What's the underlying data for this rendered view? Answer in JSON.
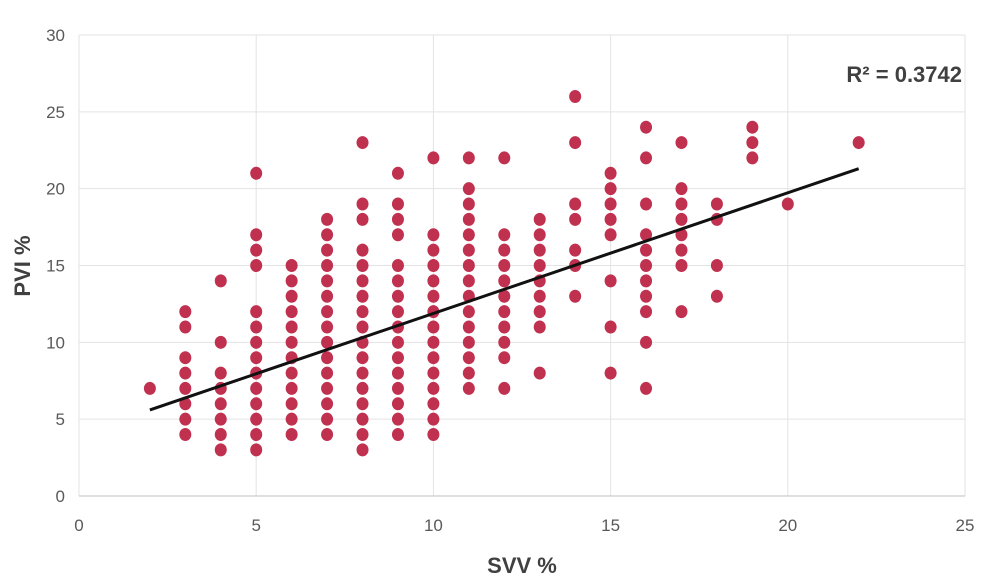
{
  "chart_data": {
    "type": "scatter",
    "title": "",
    "xlabel": "SVV %",
    "ylabel": "PVI %",
    "xlim": [
      0,
      25
    ],
    "ylim": [
      0,
      30
    ],
    "x_ticks": [
      "0",
      "5",
      "10",
      "15",
      "20",
      "25"
    ],
    "y_ticks": [
      "0",
      "5",
      "10",
      "15",
      "20",
      "25",
      "30"
    ],
    "x_tick_values": [
      0,
      5,
      10,
      15,
      20,
      25
    ],
    "y_tick_values": [
      0,
      5,
      10,
      15,
      20,
      25,
      30
    ],
    "grid": "vertical and horizontal",
    "annotation": "R² = 0.3742",
    "colors": {
      "points": "#c0304f",
      "trendline": "#111111"
    },
    "series": [
      {
        "points": [
          [
            2,
            7
          ],
          [
            3,
            4
          ],
          [
            3,
            5
          ],
          [
            3,
            6
          ],
          [
            3,
            7
          ],
          [
            3,
            8
          ],
          [
            3,
            9
          ],
          [
            3,
            11
          ],
          [
            3,
            12
          ],
          [
            4,
            3
          ],
          [
            4,
            4
          ],
          [
            4,
            5
          ],
          [
            4,
            6
          ],
          [
            4,
            7
          ],
          [
            4,
            8
          ],
          [
            4,
            10
          ],
          [
            4,
            14
          ],
          [
            5,
            3
          ],
          [
            5,
            4
          ],
          [
            5,
            5
          ],
          [
            5,
            6
          ],
          [
            5,
            7
          ],
          [
            5,
            8
          ],
          [
            5,
            9
          ],
          [
            5,
            10
          ],
          [
            5,
            11
          ],
          [
            5,
            12
          ],
          [
            5,
            15
          ],
          [
            5,
            16
          ],
          [
            5,
            17
          ],
          [
            5,
            21
          ],
          [
            6,
            4
          ],
          [
            6,
            5
          ],
          [
            6,
            6
          ],
          [
            6,
            7
          ],
          [
            6,
            8
          ],
          [
            6,
            9
          ],
          [
            6,
            10
          ],
          [
            6,
            11
          ],
          [
            6,
            12
          ],
          [
            6,
            13
          ],
          [
            6,
            14
          ],
          [
            6,
            15
          ],
          [
            7,
            4
          ],
          [
            7,
            5
          ],
          [
            7,
            6
          ],
          [
            7,
            7
          ],
          [
            7,
            8
          ],
          [
            7,
            9
          ],
          [
            7,
            10
          ],
          [
            7,
            11
          ],
          [
            7,
            12
          ],
          [
            7,
            13
          ],
          [
            7,
            14
          ],
          [
            7,
            15
          ],
          [
            7,
            16
          ],
          [
            7,
            17
          ],
          [
            7,
            18
          ],
          [
            8,
            3
          ],
          [
            8,
            4
          ],
          [
            8,
            5
          ],
          [
            8,
            6
          ],
          [
            8,
            7
          ],
          [
            8,
            8
          ],
          [
            8,
            9
          ],
          [
            8,
            10
          ],
          [
            8,
            11
          ],
          [
            8,
            12
          ],
          [
            8,
            13
          ],
          [
            8,
            14
          ],
          [
            8,
            15
          ],
          [
            8,
            16
          ],
          [
            8,
            18
          ],
          [
            8,
            19
          ],
          [
            8,
            23
          ],
          [
            9,
            4
          ],
          [
            9,
            5
          ],
          [
            9,
            6
          ],
          [
            9,
            7
          ],
          [
            9,
            8
          ],
          [
            9,
            9
          ],
          [
            9,
            10
          ],
          [
            9,
            11
          ],
          [
            9,
            12
          ],
          [
            9,
            13
          ],
          [
            9,
            14
          ],
          [
            9,
            15
          ],
          [
            9,
            17
          ],
          [
            9,
            18
          ],
          [
            9,
            19
          ],
          [
            9,
            21
          ],
          [
            10,
            4
          ],
          [
            10,
            5
          ],
          [
            10,
            6
          ],
          [
            10,
            7
          ],
          [
            10,
            8
          ],
          [
            10,
            9
          ],
          [
            10,
            10
          ],
          [
            10,
            11
          ],
          [
            10,
            12
          ],
          [
            10,
            13
          ],
          [
            10,
            14
          ],
          [
            10,
            15
          ],
          [
            10,
            16
          ],
          [
            10,
            17
          ],
          [
            10,
            22
          ],
          [
            11,
            7
          ],
          [
            11,
            8
          ],
          [
            11,
            9
          ],
          [
            11,
            10
          ],
          [
            11,
            11
          ],
          [
            11,
            12
          ],
          [
            11,
            13
          ],
          [
            11,
            14
          ],
          [
            11,
            15
          ],
          [
            11,
            16
          ],
          [
            11,
            17
          ],
          [
            11,
            18
          ],
          [
            11,
            19
          ],
          [
            11,
            20
          ],
          [
            11,
            22
          ],
          [
            12,
            7
          ],
          [
            12,
            9
          ],
          [
            12,
            10
          ],
          [
            12,
            11
          ],
          [
            12,
            12
          ],
          [
            12,
            13
          ],
          [
            12,
            14
          ],
          [
            12,
            15
          ],
          [
            12,
            16
          ],
          [
            12,
            17
          ],
          [
            12,
            22
          ],
          [
            13,
            8
          ],
          [
            13,
            11
          ],
          [
            13,
            12
          ],
          [
            13,
            13
          ],
          [
            13,
            14
          ],
          [
            13,
            15
          ],
          [
            13,
            16
          ],
          [
            13,
            17
          ],
          [
            13,
            18
          ],
          [
            14,
            13
          ],
          [
            14,
            15
          ],
          [
            14,
            16
          ],
          [
            14,
            18
          ],
          [
            14,
            19
          ],
          [
            14,
            23
          ],
          [
            14,
            26
          ],
          [
            15,
            8
          ],
          [
            15,
            11
          ],
          [
            15,
            14
          ],
          [
            15,
            17
          ],
          [
            15,
            18
          ],
          [
            15,
            19
          ],
          [
            15,
            20
          ],
          [
            15,
            21
          ],
          [
            16,
            7
          ],
          [
            16,
            10
          ],
          [
            16,
            12
          ],
          [
            16,
            13
          ],
          [
            16,
            14
          ],
          [
            16,
            15
          ],
          [
            16,
            16
          ],
          [
            16,
            17
          ],
          [
            16,
            19
          ],
          [
            16,
            22
          ],
          [
            16,
            24
          ],
          [
            17,
            12
          ],
          [
            17,
            15
          ],
          [
            17,
            16
          ],
          [
            17,
            17
          ],
          [
            17,
            18
          ],
          [
            17,
            19
          ],
          [
            17,
            20
          ],
          [
            17,
            23
          ],
          [
            18,
            13
          ],
          [
            18,
            15
          ],
          [
            18,
            18
          ],
          [
            18,
            19
          ],
          [
            19,
            22
          ],
          [
            19,
            23
          ],
          [
            19,
            24
          ],
          [
            20,
            19
          ],
          [
            22,
            23
          ]
        ]
      }
    ],
    "trendline": {
      "x": [
        2,
        22
      ],
      "y": [
        5.6,
        21.3
      ]
    }
  }
}
